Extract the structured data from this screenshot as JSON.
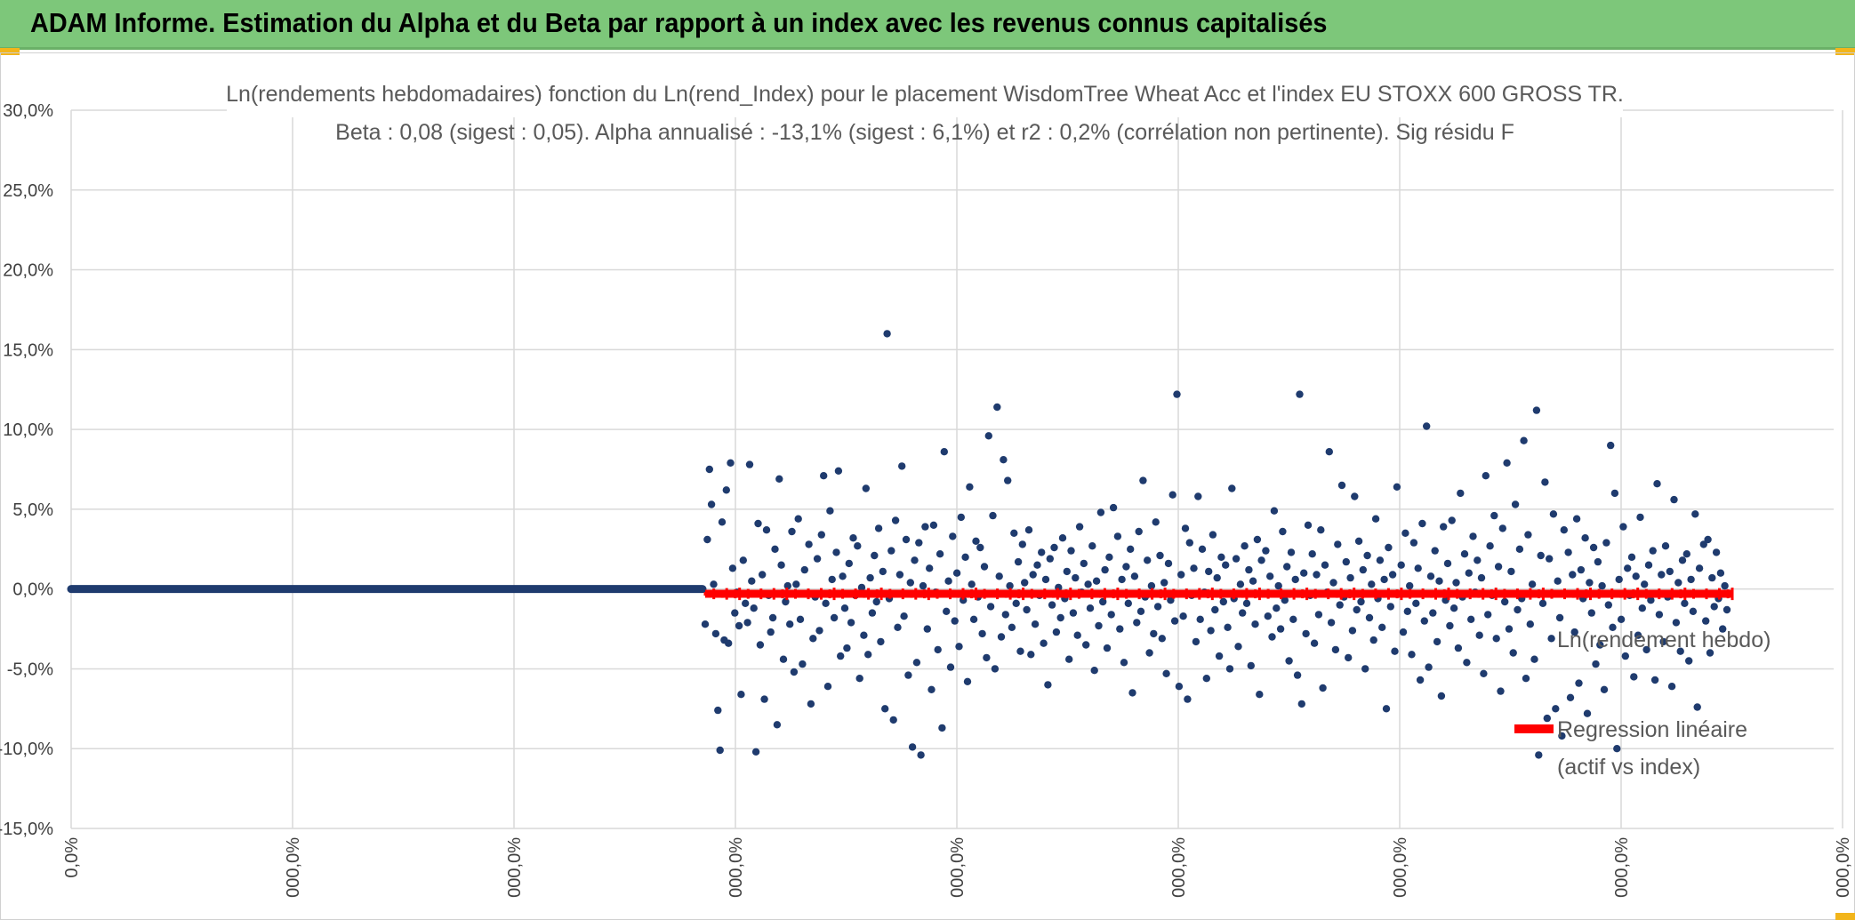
{
  "header": {
    "title": "ADAM Informe. Estimation du Alpha et du Beta par rapport à un index avec les revenus connus capitalisés"
  },
  "colors": {
    "banner": "#7dc77a",
    "accent": "#f2b51b",
    "points": "#1f3b6e",
    "regression": "#ff0000",
    "grid": "#d9d9d9"
  },
  "chart_data": {
    "type": "scatter",
    "title_line1": "Ln(rendements hebdomadaires) fonction du Ln(rend_Index) pour le placement WisdomTree Wheat Acc et l'index EU STOXX 600 GROSS TR.",
    "title_line2": "Beta : 0,08 (sigest : 0,05). Alpha annualisé : -13,1% (sigest : 6,1%) et r2 : 0,2% (corrélation non pertinente). Sig résidu F",
    "y_ticks": [
      "30,0%",
      "25,0%",
      "20,0%",
      "15,0%",
      "10,0%",
      "5,0%",
      "0,0%",
      "-5,0%",
      "-10,0%",
      "-15,0%"
    ],
    "x_ticks": [
      "0,0%",
      "000,0%",
      "000,0%",
      "000,0%",
      "000,0%",
      "000,0%",
      "000,0%",
      "000,0%",
      "000,0%"
    ],
    "ylim": [
      -15,
      30
    ],
    "grid": true,
    "legend": {
      "position": "right",
      "series_label": "Ln(rendement hebdo)",
      "regression_label_line1": "Regression linéaire",
      "regression_label_line2": "(actif vs index)"
    },
    "series": [
      {
        "name": "Ln(rendement hebdo)",
        "y_values": [
          -2.2,
          3.1,
          7.5,
          5.3,
          0.3,
          -2.8,
          -7.6,
          -10.1,
          4.2,
          -3.2,
          6.2,
          -3.4,
          7.9,
          1.3,
          -1.5,
          -0.2,
          -2.3,
          -6.6,
          1.8,
          -0.9,
          -2.1,
          7.8,
          0.5,
          -1.2,
          -10.2,
          4.1,
          -3.5,
          0.9,
          -6.9,
          3.7,
          -0.4,
          -2.7,
          -1.8,
          2.5,
          -8.5,
          6.9,
          1.5,
          -4.4,
          -0.8,
          0.2,
          -2.2,
          3.6,
          -5.2,
          0.3,
          4.4,
          -1.9,
          -4.7,
          1.2,
          -0.3,
          2.8,
          -7.2,
          -3.1,
          -0.5,
          1.9,
          -2.6,
          3.4,
          7.1,
          -0.9,
          -6.1,
          4.9,
          0.6,
          -1.8,
          2.3,
          7.4,
          -4.2,
          0.8,
          -1.2,
          -3.7,
          1.6,
          -2.1,
          3.2,
          -0.4,
          2.7,
          -5.6,
          0.1,
          -2.9,
          6.3,
          -4.1,
          0.7,
          -1.5,
          2.1,
          -0.8,
          3.8,
          -3.3,
          1.1,
          -7.5,
          16.0,
          -0.6,
          2.4,
          -8.2,
          4.3,
          -2.4,
          0.9,
          7.7,
          -1.7,
          3.1,
          -5.4,
          0.4,
          -9.9,
          1.8,
          -4.6,
          2.9,
          -10.4,
          0.2,
          3.9,
          -2.5,
          1.3,
          -6.3,
          4.0,
          -0.2,
          -3.8,
          2.2,
          -8.7,
          8.6,
          -1.4,
          0.5,
          -4.9,
          3.3,
          -2.0,
          1.0,
          -3.6,
          4.5,
          -0.7,
          2.0,
          -5.8,
          6.4,
          0.3,
          -1.9,
          3.0,
          -0.5,
          2.6,
          -2.8,
          1.4,
          -4.3,
          9.6,
          -1.1,
          4.6,
          -5.0,
          11.4,
          0.8,
          -3.0,
          8.1,
          -1.6,
          6.8,
          0.2,
          -2.4,
          3.5,
          -0.9,
          1.7,
          -3.9,
          2.8,
          0.4,
          -1.3,
          3.7,
          -4.1,
          0.9,
          -2.2,
          1.5,
          -0.4,
          2.3,
          -3.4,
          0.6,
          -6.0,
          1.9,
          -1.0,
          2.6,
          -2.7,
          0.1,
          -1.8,
          3.2,
          -0.6,
          1.1,
          -4.4,
          2.4,
          -1.5,
          0.7,
          -2.9,
          3.9,
          -0.2,
          1.6,
          -3.5,
          0.3,
          -1.2,
          2.7,
          -5.1,
          0.5,
          -2.3,
          4.8,
          -0.8,
          1.2,
          -3.7,
          2.0,
          -1.6,
          5.1,
          -0.3,
          3.3,
          -2.5,
          0.6,
          -4.6,
          1.4,
          -0.9,
          2.5,
          -6.5,
          0.8,
          -2.1,
          3.6,
          -1.4,
          6.8,
          -0.5,
          1.8,
          -4.0,
          0.2,
          -2.8,
          4.2,
          -1.1,
          2.1,
          -3.1,
          0.4,
          -5.3,
          1.6,
          -0.7,
          5.9,
          -2.0,
          12.2,
          -6.1,
          0.9,
          -1.7,
          3.8,
          -6.9,
          2.9,
          -0.4,
          1.3,
          -3.3,
          5.8,
          -1.9,
          2.5,
          -0.2,
          -5.6,
          1.1,
          -2.6,
          3.4,
          -1.3,
          0.7,
          -4.2,
          2.0,
          -0.8,
          1.5,
          -2.4,
          -5.0,
          6.3,
          -0.6,
          1.9,
          -3.6,
          0.3,
          -1.5,
          2.7,
          -0.9,
          1.2,
          -4.8,
          0.5,
          -2.2,
          3.1,
          -6.6,
          1.8,
          -0.3,
          2.4,
          -1.7,
          0.8,
          -3.0,
          4.9,
          -1.2,
          0.2,
          -2.5,
          3.6,
          -0.7,
          1.4,
          -4.5,
          2.3,
          -1.9,
          0.6,
          -5.4,
          12.2,
          -7.2,
          1.0,
          -2.8,
          4.0,
          -0.4,
          2.2,
          -3.4,
          0.9,
          -1.6,
          3.7,
          -6.2,
          1.5,
          -0.2,
          8.6,
          -2.1,
          0.4,
          -3.8,
          2.8,
          -1.0,
          6.5,
          -0.5,
          1.7,
          -4.3,
          0.7,
          -2.6,
          5.8,
          -1.3,
          3.0,
          -0.8,
          1.2,
          -5.0,
          2.1,
          -1.8,
          0.3,
          -3.2,
          4.4,
          -0.6,
          1.8,
          -2.4,
          0.6,
          -7.5,
          2.6,
          -1.1,
          0.9,
          -3.9,
          6.4,
          -0.3,
          1.5,
          -2.7,
          3.5,
          -1.4,
          0.2,
          -4.1,
          2.9,
          -0.9,
          1.3,
          -5.7,
          4.1,
          -2.0,
          10.2,
          -4.9,
          0.8,
          -1.5,
          2.4,
          -3.3,
          0.5,
          -6.7,
          3.9,
          -0.7,
          1.6,
          -2.3,
          4.3,
          -1.2,
          0.4,
          -3.7,
          6.0,
          -0.5,
          2.2,
          -4.6,
          1.0,
          -1.9,
          3.3,
          -0.2,
          1.8,
          -2.9,
          0.7,
          -5.3,
          7.1,
          -1.6,
          2.7,
          -0.4,
          4.6,
          -3.1,
          1.4,
          -6.4,
          3.8,
          -0.8,
          7.9,
          -2.5,
          1.1,
          -4.0,
          5.3,
          -1.3,
          2.5,
          -0.6,
          9.3,
          -5.6,
          3.4,
          -2.2,
          0.3,
          -4.4,
          11.2,
          -10.4,
          2.1,
          -0.9,
          6.7,
          -8.1,
          1.9,
          -3.1,
          4.7,
          -7.5,
          0.5,
          -1.8,
          -9.2,
          3.7,
          -0.3,
          2.3,
          -6.8,
          0.9,
          -2.7,
          4.4,
          -5.9,
          1.2,
          -0.6,
          3.2,
          -7.8,
          0.4,
          -1.5,
          2.6,
          -4.7,
          1.7,
          -3.5,
          0.2,
          -6.3,
          2.9,
          -1.0,
          9.0,
          -2.4,
          6.0,
          -10.0,
          0.6,
          -1.9,
          3.9,
          -4.2,
          1.3,
          -0.4,
          2.0,
          -5.5,
          0.8,
          -2.9,
          4.5,
          -1.2,
          0.3,
          -3.8,
          1.5,
          -0.7,
          2.4,
          -5.7,
          6.6,
          -1.6,
          0.9,
          -3.3,
          2.7,
          -0.5,
          1.1,
          -6.1,
          5.6,
          -2.1,
          0.4,
          -3.9,
          1.8,
          -0.9,
          2.2,
          -4.5,
          0.6,
          -1.4,
          4.7,
          -7.4,
          1.3,
          -0.3,
          2.8,
          -2.0,
          3.1,
          -4.0,
          0.7,
          -1.1,
          2.3,
          -0.6,
          1.0,
          -2.5,
          0.2,
          -1.3
        ]
      },
      {
        "name": "Regression linéaire (actif vs index)",
        "y_value": -0.3
      }
    ]
  }
}
